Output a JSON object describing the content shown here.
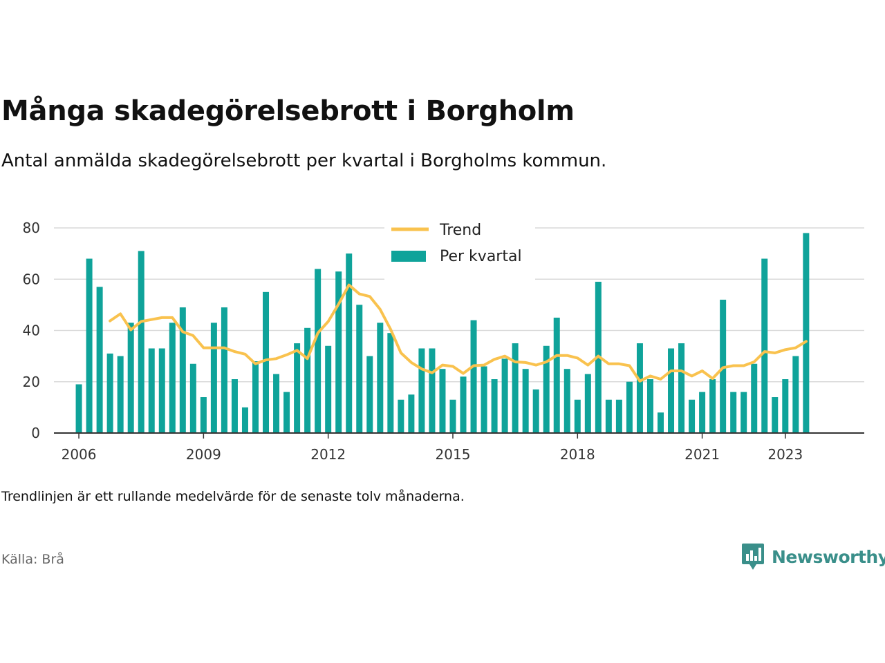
{
  "title": "Många skadegörelsebrott i Borgholm",
  "subtitle": "Antal anmälda skadegörelsebrott per kvartal i Borgholms kommun.",
  "note": "Trendlinjen är ett rullande medelvärde för de senaste tolv månaderna.",
  "source": "Källa: Brå",
  "brand": {
    "name": "Newsworthy",
    "icon": "newsworthy-logo-icon"
  },
  "colors": {
    "bar": "#0fa39a",
    "trend": "#f9c24e",
    "grid": "#d9d9d9",
    "axis": "#333333"
  },
  "chart_data": {
    "type": "bar",
    "ylim": [
      0,
      80
    ],
    "yticks": [
      0,
      20,
      40,
      60,
      80
    ],
    "xlim": [
      2005.4,
      2024.9
    ],
    "xticks": [
      2006,
      2009,
      2012,
      2015,
      2018,
      2021,
      2023
    ],
    "xtick_labels": [
      "2006",
      "2009",
      "2012",
      "2015",
      "2018",
      "2021",
      "2023"
    ],
    "legend": {
      "placement": "top-center"
    },
    "series": [
      {
        "name": "Per kvartal",
        "type": "bar",
        "x": [
          2006.0,
          2006.25,
          2006.5,
          2006.75,
          2007.0,
          2007.25,
          2007.5,
          2007.75,
          2008.0,
          2008.25,
          2008.5,
          2008.75,
          2009.0,
          2009.25,
          2009.5,
          2009.75,
          2010.0,
          2010.25,
          2010.5,
          2010.75,
          2011.0,
          2011.25,
          2011.5,
          2011.75,
          2012.0,
          2012.25,
          2012.5,
          2012.75,
          2013.0,
          2013.25,
          2013.5,
          2013.75,
          2014.0,
          2014.25,
          2014.5,
          2014.75,
          2015.0,
          2015.25,
          2015.5,
          2015.75,
          2016.0,
          2016.25,
          2016.5,
          2016.75,
          2017.0,
          2017.25,
          2017.5,
          2017.75,
          2018.0,
          2018.25,
          2018.5,
          2018.75,
          2019.0,
          2019.25,
          2019.5,
          2019.75,
          2020.0,
          2020.25,
          2020.5,
          2020.75,
          2021.0,
          2021.25,
          2021.5,
          2021.75,
          2022.0,
          2022.25,
          2022.5,
          2022.75,
          2023.0,
          2023.25,
          2023.5
        ],
        "values": [
          19,
          68,
          57,
          31,
          30,
          43,
          71,
          33,
          33,
          43,
          49,
          27,
          14,
          43,
          49,
          21,
          10,
          28,
          55,
          23,
          16,
          35,
          41,
          64,
          34,
          63,
          70,
          50,
          30,
          43,
          39,
          13,
          15,
          33,
          33,
          25,
          13,
          22,
          44,
          26,
          21,
          29,
          35,
          25,
          17,
          34,
          45,
          25,
          13,
          23,
          59,
          13,
          13,
          20,
          35,
          21,
          8,
          33,
          35,
          13,
          16,
          21,
          52,
          16,
          16,
          27,
          68,
          14,
          21,
          30,
          78
        ]
      },
      {
        "name": "Trend",
        "type": "line",
        "x": [
          2006.75,
          2007.0,
          2007.25,
          2007.5,
          2007.75,
          2008.0,
          2008.25,
          2008.5,
          2008.75,
          2009.0,
          2009.25,
          2009.5,
          2009.75,
          2010.0,
          2010.25,
          2010.5,
          2010.75,
          2011.0,
          2011.25,
          2011.5,
          2011.75,
          2012.0,
          2012.25,
          2012.5,
          2012.75,
          2013.0,
          2013.25,
          2013.5,
          2013.75,
          2014.0,
          2014.25,
          2014.5,
          2014.75,
          2015.0,
          2015.25,
          2015.5,
          2015.75,
          2016.0,
          2016.25,
          2016.5,
          2016.75,
          2017.0,
          2017.25,
          2017.5,
          2017.75,
          2018.0,
          2018.25,
          2018.5,
          2018.75,
          2019.0,
          2019.25,
          2019.5,
          2019.75,
          2020.0,
          2020.25,
          2020.5,
          2020.75,
          2021.0,
          2021.25,
          2021.5,
          2021.75,
          2022.0,
          2022.25,
          2022.5,
          2022.75,
          2023.0,
          2023.25,
          2023.5
        ],
        "values": [
          43.75,
          46.5,
          40.25,
          43.5,
          44.25,
          45,
          45,
          39.5,
          38,
          33.25,
          33.25,
          33.25,
          31.75,
          30.75,
          27,
          28.5,
          29,
          30.5,
          32.25,
          29,
          39,
          43.5,
          50.25,
          57.75,
          54.25,
          53.25,
          48.25,
          40.5,
          31.25,
          27.5,
          25,
          23.5,
          26.5,
          26,
          23.25,
          26.25,
          26.5,
          28.75,
          30,
          27.75,
          27.5,
          26.5,
          27.75,
          30.25,
          30.25,
          29.25,
          26.5,
          30,
          27,
          27,
          26.25,
          20.25,
          22.25,
          21,
          24.25,
          24.25,
          22.25,
          24.25,
          21.25,
          25.5,
          26.25,
          26.25,
          27.75,
          31.75,
          31.25,
          32.5,
          33.25,
          35.75
        ]
      }
    ]
  }
}
